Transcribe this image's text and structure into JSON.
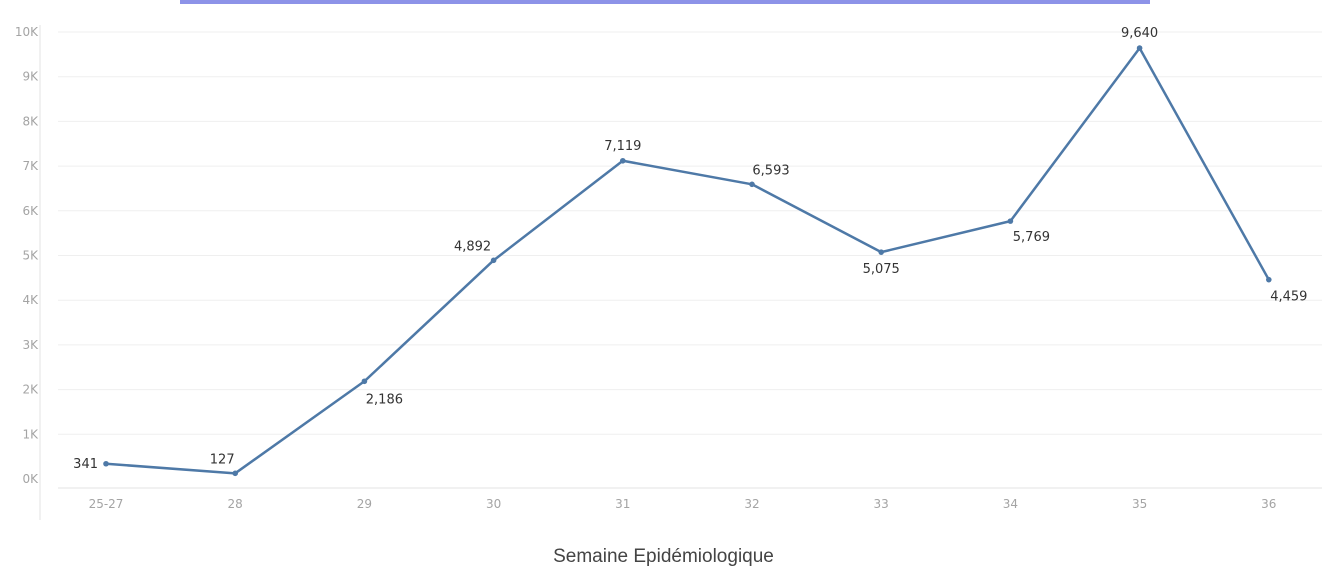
{
  "chart_data": {
    "type": "line",
    "categories": [
      "25-27",
      "28",
      "29",
      "30",
      "31",
      "32",
      "33",
      "34",
      "35",
      "36"
    ],
    "values": [
      341,
      127,
      2186,
      4892,
      7119,
      6593,
      5075,
      5769,
      9640,
      4459
    ],
    "value_labels": [
      "341",
      "127",
      "2,186",
      "4,892",
      "7,119",
      "6,593",
      "5,075",
      "5,769",
      "9,640",
      "4,459"
    ],
    "y_ticks": [
      0,
      1000,
      2000,
      3000,
      4000,
      5000,
      6000,
      7000,
      8000,
      9000,
      10000
    ],
    "y_tick_labels": [
      "0K",
      "1K",
      "2K",
      "3K",
      "4K",
      "5K",
      "6K",
      "7K",
      "8K",
      "9K",
      "10K"
    ],
    "xlabel": "Semaine Epidémiologique",
    "ylabel": "",
    "title": "",
    "ylim": [
      0,
      10000
    ],
    "grid": true,
    "colors": {
      "line": "#4e79a7",
      "grid": "#efefef",
      "axis": "#e3e3e3",
      "top_band": "#2f3bd6"
    }
  }
}
